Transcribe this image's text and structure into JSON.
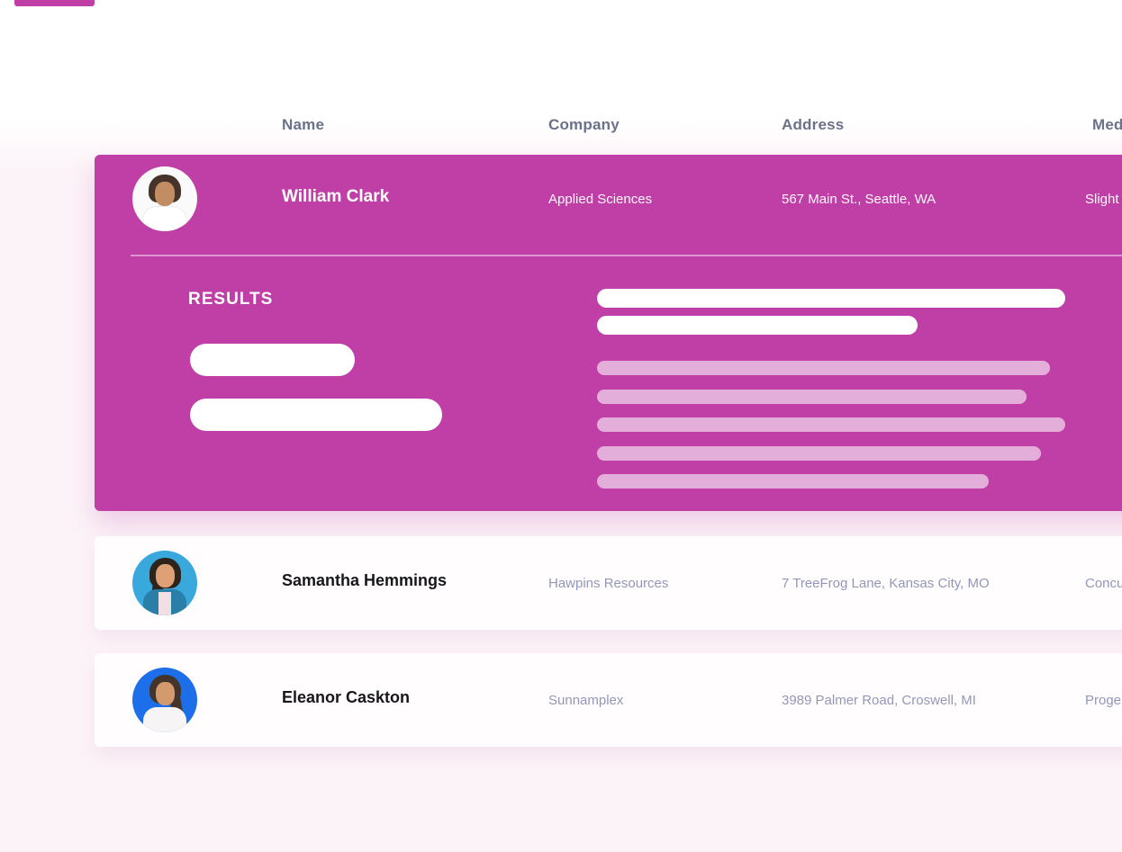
{
  "table": {
    "columns": [
      {
        "label": "Name"
      },
      {
        "label": "Company"
      },
      {
        "label": "Address"
      },
      {
        "label": "Med"
      }
    ],
    "expanded_row": {
      "name": "William Clark",
      "company": "Applied Sciences",
      "address": "567 Main St., Seattle, WA",
      "medical": "Slight",
      "results_label": "RESULTS"
    },
    "rows": [
      {
        "name": "Samantha Hemmings",
        "company": "Hawpins Resources",
        "address": "7 TreeFrog Lane, Kansas City, MO",
        "medical": "Concu"
      },
      {
        "name": "Eleanor Caskton",
        "company": "Sunnamplex",
        "address": "3989 Palmer Road, Croswell, MI",
        "medical": "Proge"
      }
    ]
  },
  "colors": {
    "accent_magenta": "#bf3fa6",
    "skeleton_light_bar": "#e7bcdd",
    "header_text": "#6a7189",
    "muted_text": "#9297ba",
    "name_text": "#17171b",
    "page_tint": "#fcf3f8",
    "avatar_bg_william": "#fafafa",
    "avatar_bg_samantha": "#38a8dd",
    "avatar_bg_eleanor": "#1d6fe9"
  }
}
